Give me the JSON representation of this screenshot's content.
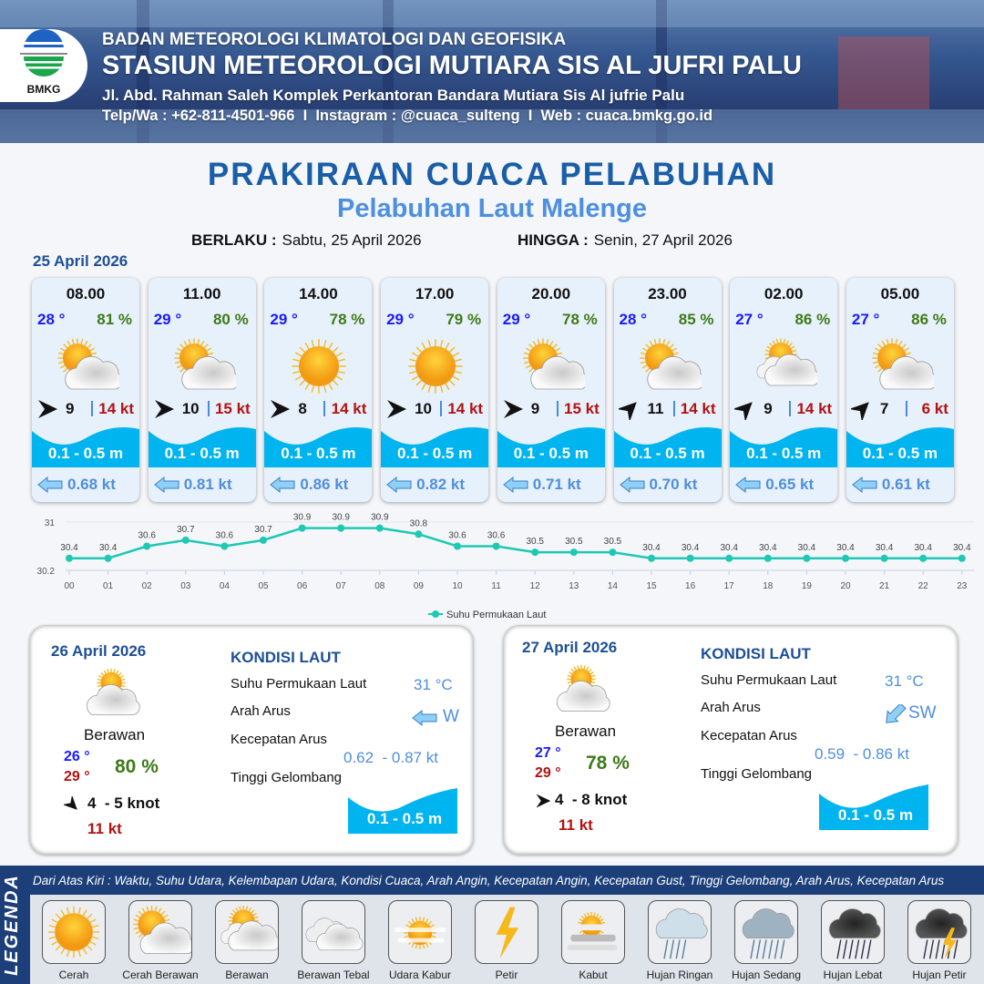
{
  "header": {
    "agency": "BADAN METEOROLOGI KLIMATOLOGI DAN GEOFISIKA",
    "station": "STASIUN METEOROLOGI MUTIARA SIS AL JUFRI PALU",
    "address": "Jl. Abd. Rahman Saleh Komplek Perkantoran Bandara Mutiara Sis Al jufrie Palu",
    "contact": "Telp/Wa : +62-811-4501-966  I  Instagram : @cuaca_sulteng  I  Web : cuaca.bmkg.go.id",
    "logo_text": "BMKG"
  },
  "title": "PRAKIRAAN CUACA PELABUHAN",
  "subtitle": "Pelabuhan Laut Malenge",
  "validity": {
    "from_label": "BERLAKU :",
    "from": "Sabtu, 25 April 2026",
    "to_label": "HINGGA :",
    "to": "Senin, 27 April 2026"
  },
  "day1": {
    "date": "25 April 2026",
    "forecasts": [
      {
        "time": "08.00",
        "temp": "28 °",
        "humidity": "81 %",
        "weather": "cerah-berawan",
        "wind_dir": "E",
        "wind": "9",
        "gust": "14 kt",
        "wave": "0.1 - 0.5 m",
        "current_dir": "W",
        "current": "0.68 kt"
      },
      {
        "time": "11.00",
        "temp": "29 °",
        "humidity": "80 %",
        "weather": "cerah-berawan",
        "wind_dir": "E",
        "wind": "10",
        "gust": "15 kt",
        "wave": "0.1 - 0.5 m",
        "current_dir": "W",
        "current": "0.81 kt"
      },
      {
        "time": "14.00",
        "temp": "29 °",
        "humidity": "78 %",
        "weather": "cerah",
        "wind_dir": "E",
        "wind": "8",
        "gust": "14 kt",
        "wave": "0.1 - 0.5 m",
        "current_dir": "W",
        "current": "0.86 kt"
      },
      {
        "time": "17.00",
        "temp": "29 °",
        "humidity": "79 %",
        "weather": "cerah",
        "wind_dir": "E",
        "wind": "10",
        "gust": "14 kt",
        "wave": "0.1 - 0.5 m",
        "current_dir": "W",
        "current": "0.82 kt"
      },
      {
        "time": "20.00",
        "temp": "29 °",
        "humidity": "78 %",
        "weather": "cerah-berawan",
        "wind_dir": "E",
        "wind": "9",
        "gust": "15 kt",
        "wave": "0.1 - 0.5 m",
        "current_dir": "W",
        "current": "0.71 kt"
      },
      {
        "time": "23.00",
        "temp": "28 °",
        "humidity": "85 %",
        "weather": "cerah-berawan",
        "wind_dir": "NE",
        "wind": "11",
        "gust": "14 kt",
        "wave": "0.1 - 0.5 m",
        "current_dir": "W",
        "current": "0.70 kt"
      },
      {
        "time": "02.00",
        "temp": "27 °",
        "humidity": "86 %",
        "weather": "berawan",
        "wind_dir": "NE",
        "wind": "9",
        "gust": "14 kt",
        "wave": "0.1 - 0.5 m",
        "current_dir": "W",
        "current": "0.65 kt"
      },
      {
        "time": "05.00",
        "temp": "27 °",
        "humidity": "86 %",
        "weather": "cerah-berawan",
        "wind_dir": "NE",
        "wind": "7",
        "gust": "6 kt",
        "wave": "0.1 - 0.5 m",
        "current_dir": "W",
        "current": "0.61 kt"
      }
    ]
  },
  "chart_data": {
    "type": "line",
    "categories": [
      "00",
      "01",
      "02",
      "03",
      "04",
      "05",
      "06",
      "07",
      "08",
      "09",
      "10",
      "11",
      "12",
      "13",
      "14",
      "15",
      "16",
      "17",
      "18",
      "19",
      "20",
      "21",
      "22",
      "23"
    ],
    "series": [
      {
        "name": "Suhu Permukaan Laut",
        "values": [
          30.4,
          30.4,
          30.6,
          30.7,
          30.6,
          30.7,
          30.9,
          30.9,
          30.9,
          30.8,
          30.6,
          30.6,
          30.5,
          30.5,
          30.5,
          30.4,
          30.4,
          30.4,
          30.4,
          30.4,
          30.4,
          30.4,
          30.4,
          30.4
        ],
        "color": "#1fc8b4"
      }
    ],
    "y_ticks": [
      "31",
      "30.2"
    ],
    "ylim": [
      30.2,
      31
    ],
    "legend": "bottom",
    "grid": true
  },
  "days": [
    {
      "date": "26 April 2026",
      "weather": "berawan",
      "condition": "Berawan",
      "tmin": "26 °",
      "tmax": "29 °",
      "humidity": "80 %",
      "wind_dir": "SE",
      "wind": "4  - 5 knot",
      "gust": "11 kt",
      "sea": {
        "title": "KONDISI LAUT",
        "sst_label": "Suhu Permukaan Laut",
        "sst": "31 °C",
        "dir_label": "Arah Arus",
        "dir": "W",
        "speed_label": "Kecepatan Arus",
        "speed": "0.62  - 0.87 kt",
        "wave_label": "Tinggi Gelombang",
        "wave": "0.1 - 0.5 m"
      }
    },
    {
      "date": "27 April 2026",
      "weather": "berawan",
      "condition": "Berawan",
      "tmin": "27 °",
      "tmax": "29 °",
      "humidity": "78 %",
      "wind_dir": "E",
      "wind": "4  - 8 knot",
      "gust": "11 kt",
      "sea": {
        "title": "KONDISI LAUT",
        "sst_label": "Suhu Permukaan Laut",
        "sst": "31 °C",
        "dir_label": "Arah Arus",
        "dir": "SW",
        "speed_label": "Kecepatan Arus",
        "speed": "0.59  - 0.86 kt",
        "wave_label": "Tinggi Gelombang",
        "wave": "0.1 - 0.5 m"
      }
    }
  ],
  "legend": {
    "title": "LEGENDA",
    "description": "Dari Atas Kiri : Waktu, Suhu Udara, Kelembapan Udara, Kondisi Cuaca, Arah Angin, Kecepatan Angin, Kecepatan Gust, Tinggi Gelombang, Arah Arus, Kecepatan Arus",
    "items": [
      {
        "label": "Cerah",
        "icon": "cerah"
      },
      {
        "label": "Cerah Berawan",
        "icon": "cerah-berawan"
      },
      {
        "label": "Berawan",
        "icon": "berawan"
      },
      {
        "label": "Berawan Tebal",
        "icon": "berawan-tebal"
      },
      {
        "label": "Udara Kabur",
        "icon": "udara-kabur"
      },
      {
        "label": "Petir",
        "icon": "petir"
      },
      {
        "label": "Kabut",
        "icon": "kabut"
      },
      {
        "label": "Hujan Ringan",
        "icon": "hujan-ringan"
      },
      {
        "label": "Hujan Sedang",
        "icon": "hujan-sedang"
      },
      {
        "label": "Hujan Lebat",
        "icon": "hujan-lebat"
      },
      {
        "label": "Hujan Petir",
        "icon": "hujan-petir"
      }
    ]
  },
  "colors": {
    "brand": "#1c3f7a",
    "title": "#1b5ea8",
    "wave": "#00b4f0",
    "temp": "#1a1aff",
    "humidity": "#3f7a1a",
    "gust": "#b31212",
    "current": "#4f8ede"
  }
}
